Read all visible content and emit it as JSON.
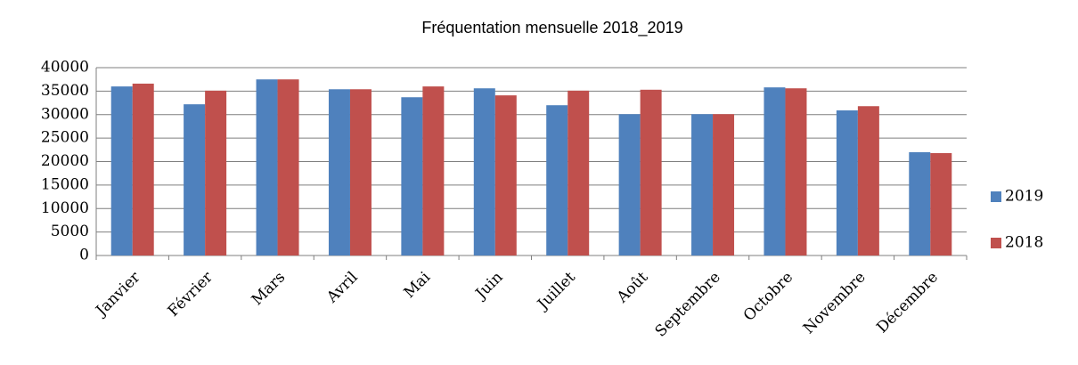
{
  "chart_data": {
    "type": "bar",
    "title": "Fréquentation mensuelle 2018_2019",
    "categories": [
      "Janvier",
      "Février",
      "Mars",
      "Avril",
      "Mai",
      "Juin",
      "Juillet",
      "Août",
      "Septembre",
      "Octobre",
      "Novembre",
      "Décembre"
    ],
    "series": [
      {
        "name": "2019",
        "color": "#4f81bd",
        "values": [
          36000,
          32200,
          37500,
          35400,
          33700,
          35600,
          32000,
          30100,
          30100,
          35800,
          30900,
          22000
        ]
      },
      {
        "name": "2018",
        "color": "#c0504d",
        "values": [
          36600,
          35100,
          37500,
          35400,
          36000,
          34100,
          35100,
          35300,
          30100,
          35600,
          31800,
          21800
        ]
      }
    ],
    "ylim": [
      0,
      40000
    ],
    "yticks": [
      0,
      5000,
      10000,
      15000,
      20000,
      25000,
      30000,
      35000,
      40000
    ],
    "grid": true,
    "legend": "right"
  }
}
